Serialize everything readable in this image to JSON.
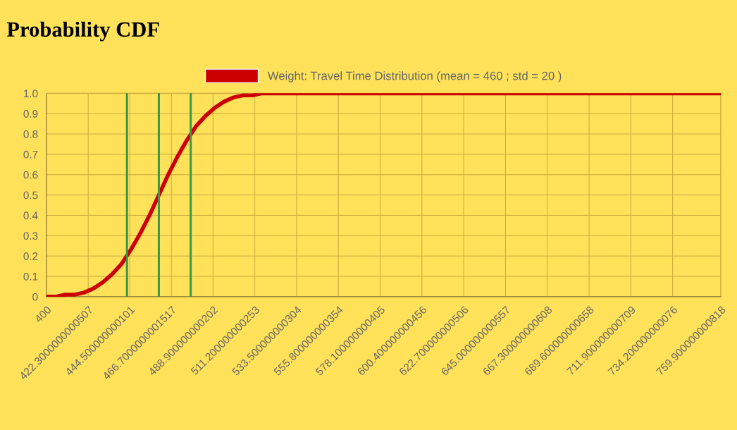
{
  "chart_data": {
    "type": "line",
    "title": "Probability CDF",
    "x": [
      400,
      405,
      410,
      415,
      420,
      425,
      430,
      435,
      440,
      445,
      450,
      455,
      460,
      465,
      470,
      475,
      480,
      485,
      490,
      495,
      500,
      505,
      510,
      515,
      520,
      530,
      540,
      759.9
    ],
    "series": [
      {
        "name": "Weight: Travel Time Distribution (mean = 460 ; std = 20 )",
        "color": "#cc0000",
        "values": [
          0.0,
          0.0,
          0.01,
          0.01,
          0.02,
          0.04,
          0.07,
          0.11,
          0.16,
          0.23,
          0.31,
          0.4,
          0.5,
          0.6,
          0.69,
          0.77,
          0.84,
          0.89,
          0.93,
          0.96,
          0.98,
          0.99,
          0.99,
          1.0,
          1.0,
          1.0,
          1.0,
          1.0
        ]
      }
    ],
    "xlim": [
      400,
      759.900000000818
    ],
    "xticks": [
      400,
      {
        "value": 422.3000000000507,
        "label": "422.3000000000507"
      },
      {
        "value": 444.500000000101,
        "label": "444.500000000101"
      },
      {
        "value": 466.7000000001517,
        "label": "466.7000000001517"
      },
      {
        "value": 488.900000000202,
        "label": "488.900000000202"
      },
      {
        "value": 511.200000000253,
        "label": "511.200000000253"
      },
      {
        "value": 533.500000000304,
        "label": "533.500000000304"
      },
      {
        "value": 555.800000000354,
        "label": "555.800000000354"
      },
      {
        "value": 578.100000000405,
        "label": "578.100000000405"
      },
      {
        "value": 600.400000000456,
        "label": "600.400000000456"
      },
      {
        "value": 622.700000000506,
        "label": "622.700000000506"
      },
      {
        "value": 645.000000000557,
        "label": "645.000000000557"
      },
      {
        "value": 667.300000000608,
        "label": "667.300000000608"
      },
      {
        "value": 689.600000000658,
        "label": "689.600000000658"
      },
      {
        "value": 711.900000000709,
        "label": "711.900000000709"
      },
      {
        "value": 734.200000000076,
        "label": "734.200000000076"
      },
      {
        "value": 759.900000000818,
        "label": "759.900000000818"
      }
    ],
    "ylim": [
      0,
      1.0
    ],
    "yticks": [
      0,
      0.1,
      0.2,
      0.3,
      0.4,
      0.5,
      0.6,
      0.7,
      0.8,
      0.9,
      {
        "value": 1,
        "label": "1.0"
      }
    ],
    "ref_lines": [
      {
        "axis": "x",
        "value": 443,
        "color": "#3a9a4a"
      },
      {
        "axis": "x",
        "value": 460,
        "color": "#3a9a4a"
      },
      {
        "axis": "x",
        "value": 477,
        "color": "#3a9a4a"
      }
    ],
    "grid": true,
    "legend": "top",
    "marker": "none",
    "line_style": "solid"
  }
}
